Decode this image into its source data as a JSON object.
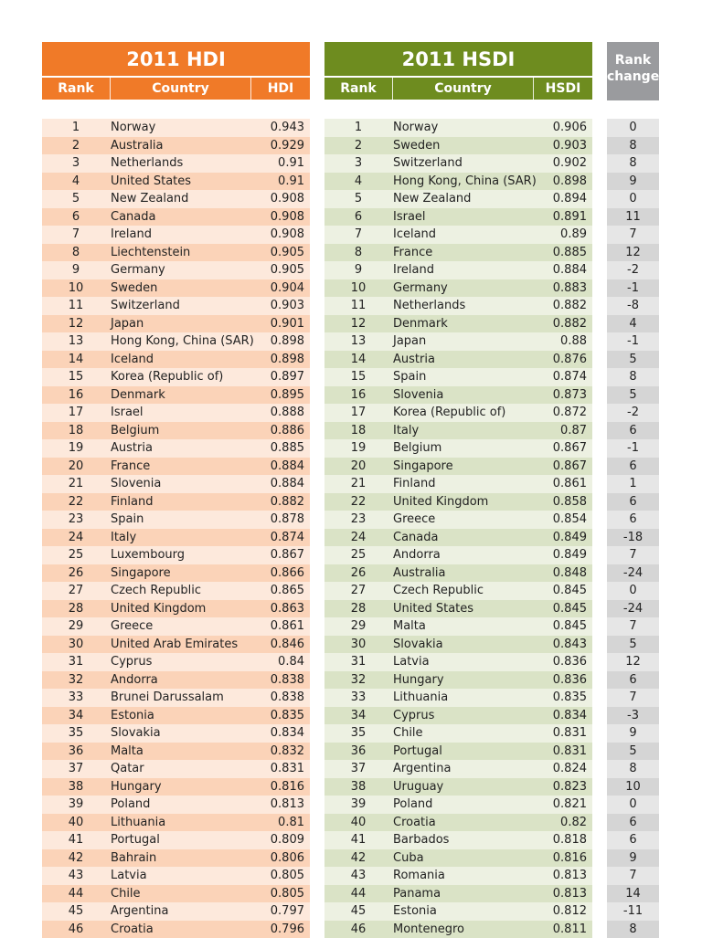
{
  "hdi": {
    "title": "2011 HDI",
    "col_rank": "Rank",
    "col_country": "Country",
    "col_value": "HDI",
    "rows": [
      [
        "1",
        "Norway",
        "0.943"
      ],
      [
        "2",
        "Australia",
        "0.929"
      ],
      [
        "3",
        "Netherlands",
        "0.91"
      ],
      [
        "4",
        "United States",
        "0.91"
      ],
      [
        "5",
        "New Zealand",
        "0.908"
      ],
      [
        "6",
        "Canada",
        "0.908"
      ],
      [
        "7",
        "Ireland",
        "0.908"
      ],
      [
        "8",
        "Liechtenstein",
        "0.905"
      ],
      [
        "9",
        "Germany",
        "0.905"
      ],
      [
        "10",
        "Sweden",
        "0.904"
      ],
      [
        "11",
        "Switzerland",
        "0.903"
      ],
      [
        "12",
        "Japan",
        "0.901"
      ],
      [
        "13",
        "Hong Kong, China (SAR)",
        "0.898"
      ],
      [
        "14",
        "Iceland",
        "0.898"
      ],
      [
        "15",
        "Korea (Republic of)",
        "0.897"
      ],
      [
        "16",
        "Denmark",
        "0.895"
      ],
      [
        "17",
        "Israel",
        "0.888"
      ],
      [
        "18",
        "Belgium",
        "0.886"
      ],
      [
        "19",
        "Austria",
        "0.885"
      ],
      [
        "20",
        "France",
        "0.884"
      ],
      [
        "21",
        "Slovenia",
        "0.884"
      ],
      [
        "22",
        "Finland",
        "0.882"
      ],
      [
        "23",
        "Spain",
        "0.878"
      ],
      [
        "24",
        "Italy",
        "0.874"
      ],
      [
        "25",
        "Luxembourg",
        "0.867"
      ],
      [
        "26",
        "Singapore",
        "0.866"
      ],
      [
        "27",
        "Czech Republic",
        "0.865"
      ],
      [
        "28",
        "United Kingdom",
        "0.863"
      ],
      [
        "29",
        "Greece",
        "0.861"
      ],
      [
        "30",
        "United Arab Emirates",
        "0.846"
      ],
      [
        "31",
        "Cyprus",
        "0.84"
      ],
      [
        "32",
        "Andorra",
        "0.838"
      ],
      [
        "33",
        "Brunei Darussalam",
        "0.838"
      ],
      [
        "34",
        "Estonia",
        "0.835"
      ],
      [
        "35",
        "Slovakia",
        "0.834"
      ],
      [
        "36",
        "Malta",
        "0.832"
      ],
      [
        "37",
        "Qatar",
        "0.831"
      ],
      [
        "38",
        "Hungary",
        "0.816"
      ],
      [
        "39",
        "Poland",
        "0.813"
      ],
      [
        "40",
        "Lithuania",
        "0.81"
      ],
      [
        "41",
        "Portugal",
        "0.809"
      ],
      [
        "42",
        "Bahrain",
        "0.806"
      ],
      [
        "43",
        "Latvia",
        "0.805"
      ],
      [
        "44",
        "Chile",
        "0.805"
      ],
      [
        "45",
        "Argentina",
        "0.797"
      ],
      [
        "46",
        "Croatia",
        "0.796"
      ]
    ]
  },
  "hsdi": {
    "title": "2011 HSDI",
    "col_rank": "Rank",
    "col_country": "Country",
    "col_value": "HSDI",
    "rows": [
      [
        "1",
        "Norway",
        "0.906"
      ],
      [
        "2",
        "Sweden",
        "0.903"
      ],
      [
        "3",
        "Switzerland",
        "0.902"
      ],
      [
        "4",
        "Hong Kong, China (SAR)",
        "0.898"
      ],
      [
        "5",
        "New Zealand",
        "0.894"
      ],
      [
        "6",
        "Israel",
        "0.891"
      ],
      [
        "7",
        "Iceland",
        "0.89"
      ],
      [
        "8",
        "France",
        "0.885"
      ],
      [
        "9",
        "Ireland",
        "0.884"
      ],
      [
        "10",
        "Germany",
        "0.883"
      ],
      [
        "11",
        "Netherlands",
        "0.882"
      ],
      [
        "12",
        "Denmark",
        "0.882"
      ],
      [
        "13",
        "Japan",
        "0.88"
      ],
      [
        "14",
        "Austria",
        "0.876"
      ],
      [
        "15",
        "Spain",
        "0.874"
      ],
      [
        "16",
        "Slovenia",
        "0.873"
      ],
      [
        "17",
        "Korea (Republic of)",
        "0.872"
      ],
      [
        "18",
        "Italy",
        "0.87"
      ],
      [
        "19",
        "Belgium",
        "0.867"
      ],
      [
        "20",
        "Singapore",
        "0.867"
      ],
      [
        "21",
        "Finland",
        "0.861"
      ],
      [
        "22",
        "United Kingdom",
        "0.858"
      ],
      [
        "23",
        "Greece",
        "0.854"
      ],
      [
        "24",
        "Canada",
        "0.849"
      ],
      [
        "25",
        "Andorra",
        "0.849"
      ],
      [
        "26",
        "Australia",
        "0.848"
      ],
      [
        "27",
        "Czech Republic",
        "0.845"
      ],
      [
        "28",
        "United States",
        "0.845"
      ],
      [
        "29",
        "Malta",
        "0.845"
      ],
      [
        "30",
        "Slovakia",
        "0.843"
      ],
      [
        "31",
        "Latvia",
        "0.836"
      ],
      [
        "32",
        "Hungary",
        "0.836"
      ],
      [
        "33",
        "Lithuania",
        "0.835"
      ],
      [
        "34",
        "Cyprus",
        "0.834"
      ],
      [
        "35",
        "Chile",
        "0.831"
      ],
      [
        "36",
        "Portugal",
        "0.831"
      ],
      [
        "37",
        "Argentina",
        "0.824"
      ],
      [
        "38",
        "Uruguay",
        "0.823"
      ],
      [
        "39",
        "Poland",
        "0.821"
      ],
      [
        "40",
        "Croatia",
        "0.82"
      ],
      [
        "41",
        "Barbados",
        "0.818"
      ],
      [
        "42",
        "Cuba",
        "0.816"
      ],
      [
        "43",
        "Romania",
        "0.813"
      ],
      [
        "44",
        "Panama",
        "0.813"
      ],
      [
        "45",
        "Estonia",
        "0.812"
      ],
      [
        "46",
        "Montenegro",
        "0.811"
      ]
    ]
  },
  "rank_change": {
    "title": "Rank change",
    "values": [
      "0",
      "8",
      "8",
      "9",
      "0",
      "11",
      "7",
      "12",
      "-2",
      "-1",
      "-8",
      "4",
      "-1",
      "5",
      "8",
      "5",
      "-2",
      "6",
      "-1",
      "6",
      "1",
      "6",
      "6",
      "-18",
      "7",
      "-24",
      "0",
      "-24",
      "7",
      "5",
      "12",
      "6",
      "7",
      "-3",
      "9",
      "5",
      "8",
      "10",
      "0",
      "6",
      "6",
      "9",
      "7",
      "14",
      "-11",
      "8"
    ]
  },
  "colors": {
    "hdi_accent": "#f07a28",
    "hdi_row_odd": "#fde9dc",
    "hdi_row_even": "#fbd3b8",
    "hsdi_accent": "#6e8c1f",
    "hsdi_row_odd": "#edf1e2",
    "hsdi_row_even": "#dae3c6",
    "change_header": "#9a9b9e",
    "change_row_odd": "#e6e6e6",
    "change_row_even": "#d5d5d5"
  }
}
